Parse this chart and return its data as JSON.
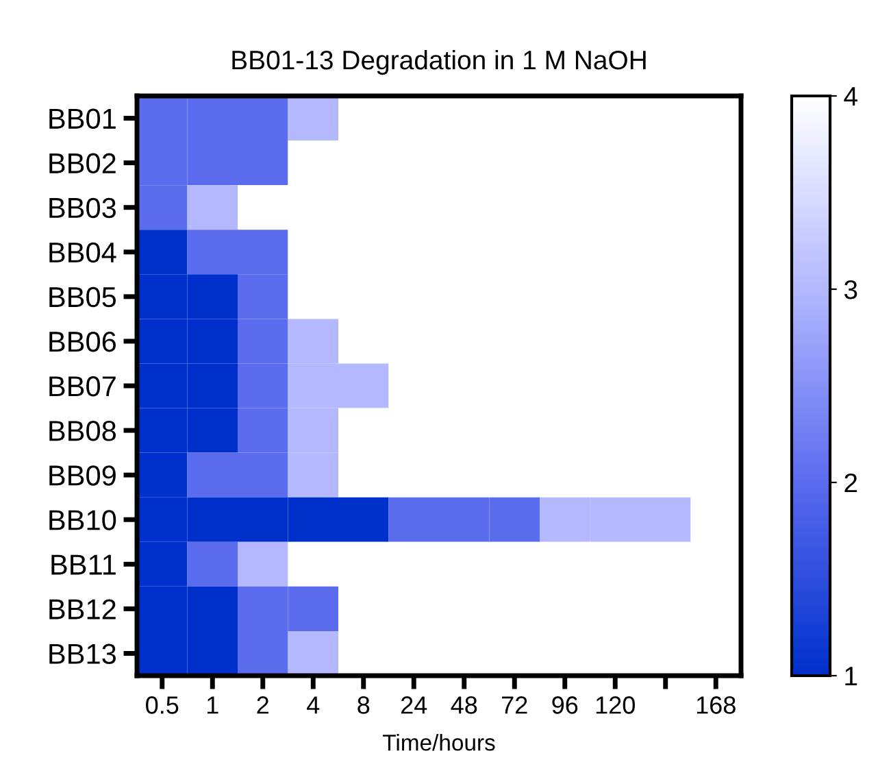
{
  "chart_data": {
    "type": "heatmap",
    "title": "BB01-13 Degradation in 1 M NaOH",
    "xlabel": "Time/hours",
    "categories": [
      "0.5",
      "1",
      "2",
      "4",
      "8",
      "24",
      "48",
      "72",
      "96",
      "120",
      null,
      "168"
    ],
    "y_categories": [
      "BB01",
      "BB02",
      "BB03",
      "BB04",
      "BB05",
      "BB06",
      "BB07",
      "BB08",
      "BB09",
      "BB10",
      "BB11",
      "BB12",
      "BB13"
    ],
    "cells": [
      [
        2,
        2,
        2,
        3,
        4,
        4,
        4,
        4,
        4,
        4,
        4,
        4
      ],
      [
        2,
        2,
        2,
        4,
        4,
        4,
        4,
        4,
        4,
        4,
        4,
        4
      ],
      [
        2,
        3,
        4,
        4,
        4,
        4,
        4,
        4,
        4,
        4,
        4,
        4
      ],
      [
        1,
        2,
        2,
        4,
        4,
        4,
        4,
        4,
        4,
        4,
        4,
        4
      ],
      [
        1,
        1,
        2,
        4,
        4,
        4,
        4,
        4,
        4,
        4,
        4,
        4
      ],
      [
        1,
        1,
        2,
        3,
        4,
        4,
        4,
        4,
        4,
        4,
        4,
        4
      ],
      [
        1,
        1,
        2,
        3,
        3,
        4,
        4,
        4,
        4,
        4,
        4,
        4
      ],
      [
        1,
        1,
        2,
        3,
        4,
        4,
        4,
        4,
        4,
        4,
        4,
        4
      ],
      [
        1,
        2,
        2,
        3,
        4,
        4,
        4,
        4,
        4,
        4,
        4,
        4
      ],
      [
        1,
        1,
        1,
        1,
        1,
        2,
        2,
        2,
        3,
        3,
        3,
        4
      ],
      [
        1,
        2,
        3,
        4,
        4,
        4,
        4,
        4,
        4,
        4,
        4,
        4
      ],
      [
        1,
        1,
        2,
        2,
        4,
        4,
        4,
        4,
        4,
        4,
        4,
        4
      ],
      [
        1,
        1,
        2,
        3,
        4,
        4,
        4,
        4,
        4,
        4,
        4,
        4
      ]
    ],
    "colors": [
      "#0030cc",
      "#5b6bee",
      "#b3b8ff",
      "#ffffff"
    ],
    "clim": [
      1,
      4
    ],
    "cticks": [
      1,
      2,
      3,
      4
    ]
  }
}
